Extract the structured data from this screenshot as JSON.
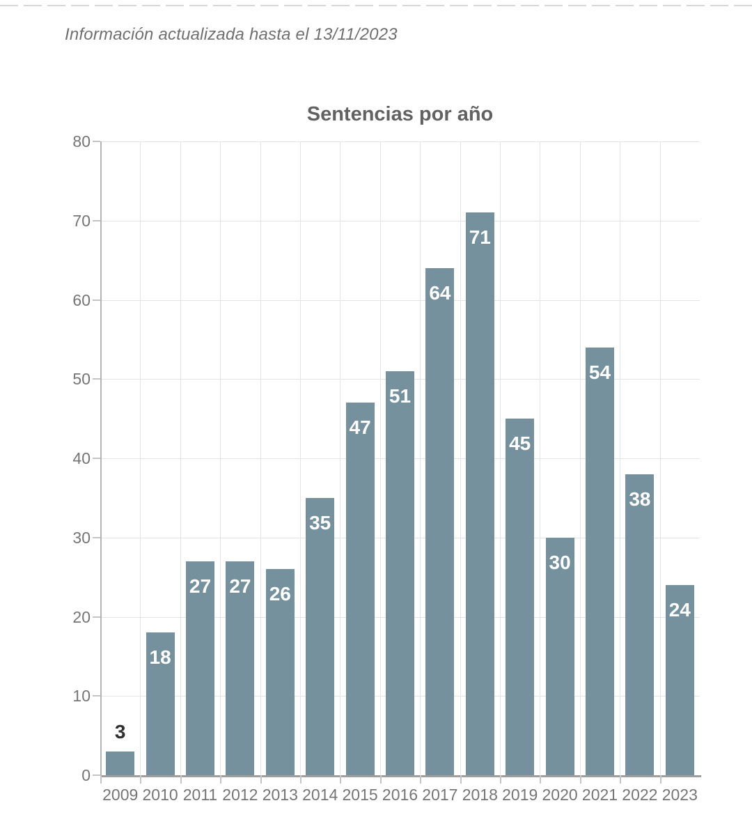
{
  "note": "Información actualizada hasta el 13/11/2023",
  "chart_data": {
    "type": "bar",
    "title": "Sentencias por año",
    "categories": [
      "2009",
      "2010",
      "2011",
      "2012",
      "2013",
      "2014",
      "2015",
      "2016",
      "2017",
      "2018",
      "2019",
      "2020",
      "2021",
      "2022",
      "2023"
    ],
    "values": [
      3,
      18,
      27,
      27,
      26,
      35,
      47,
      51,
      64,
      71,
      45,
      30,
      54,
      38,
      24
    ],
    "xlabel": "",
    "ylabel": "",
    "ylim": [
      0,
      80
    ],
    "yticks": [
      0,
      10,
      20,
      30,
      40,
      50,
      60,
      70,
      80
    ],
    "grid": true,
    "legend": false,
    "bar_labels_shown": true,
    "colors": {
      "bar": "#74919d",
      "bar_label_inside": "#ffffff",
      "bar_label_outside": "#303030",
      "axis_text": "#757575",
      "gridline": "#e4e4e4",
      "axis_line": "#9e9e9e",
      "y_axis_line": "#b3b3b3",
      "tick": "#c4c4c4",
      "title": "#616161",
      "note": "#6f6f6f"
    }
  }
}
